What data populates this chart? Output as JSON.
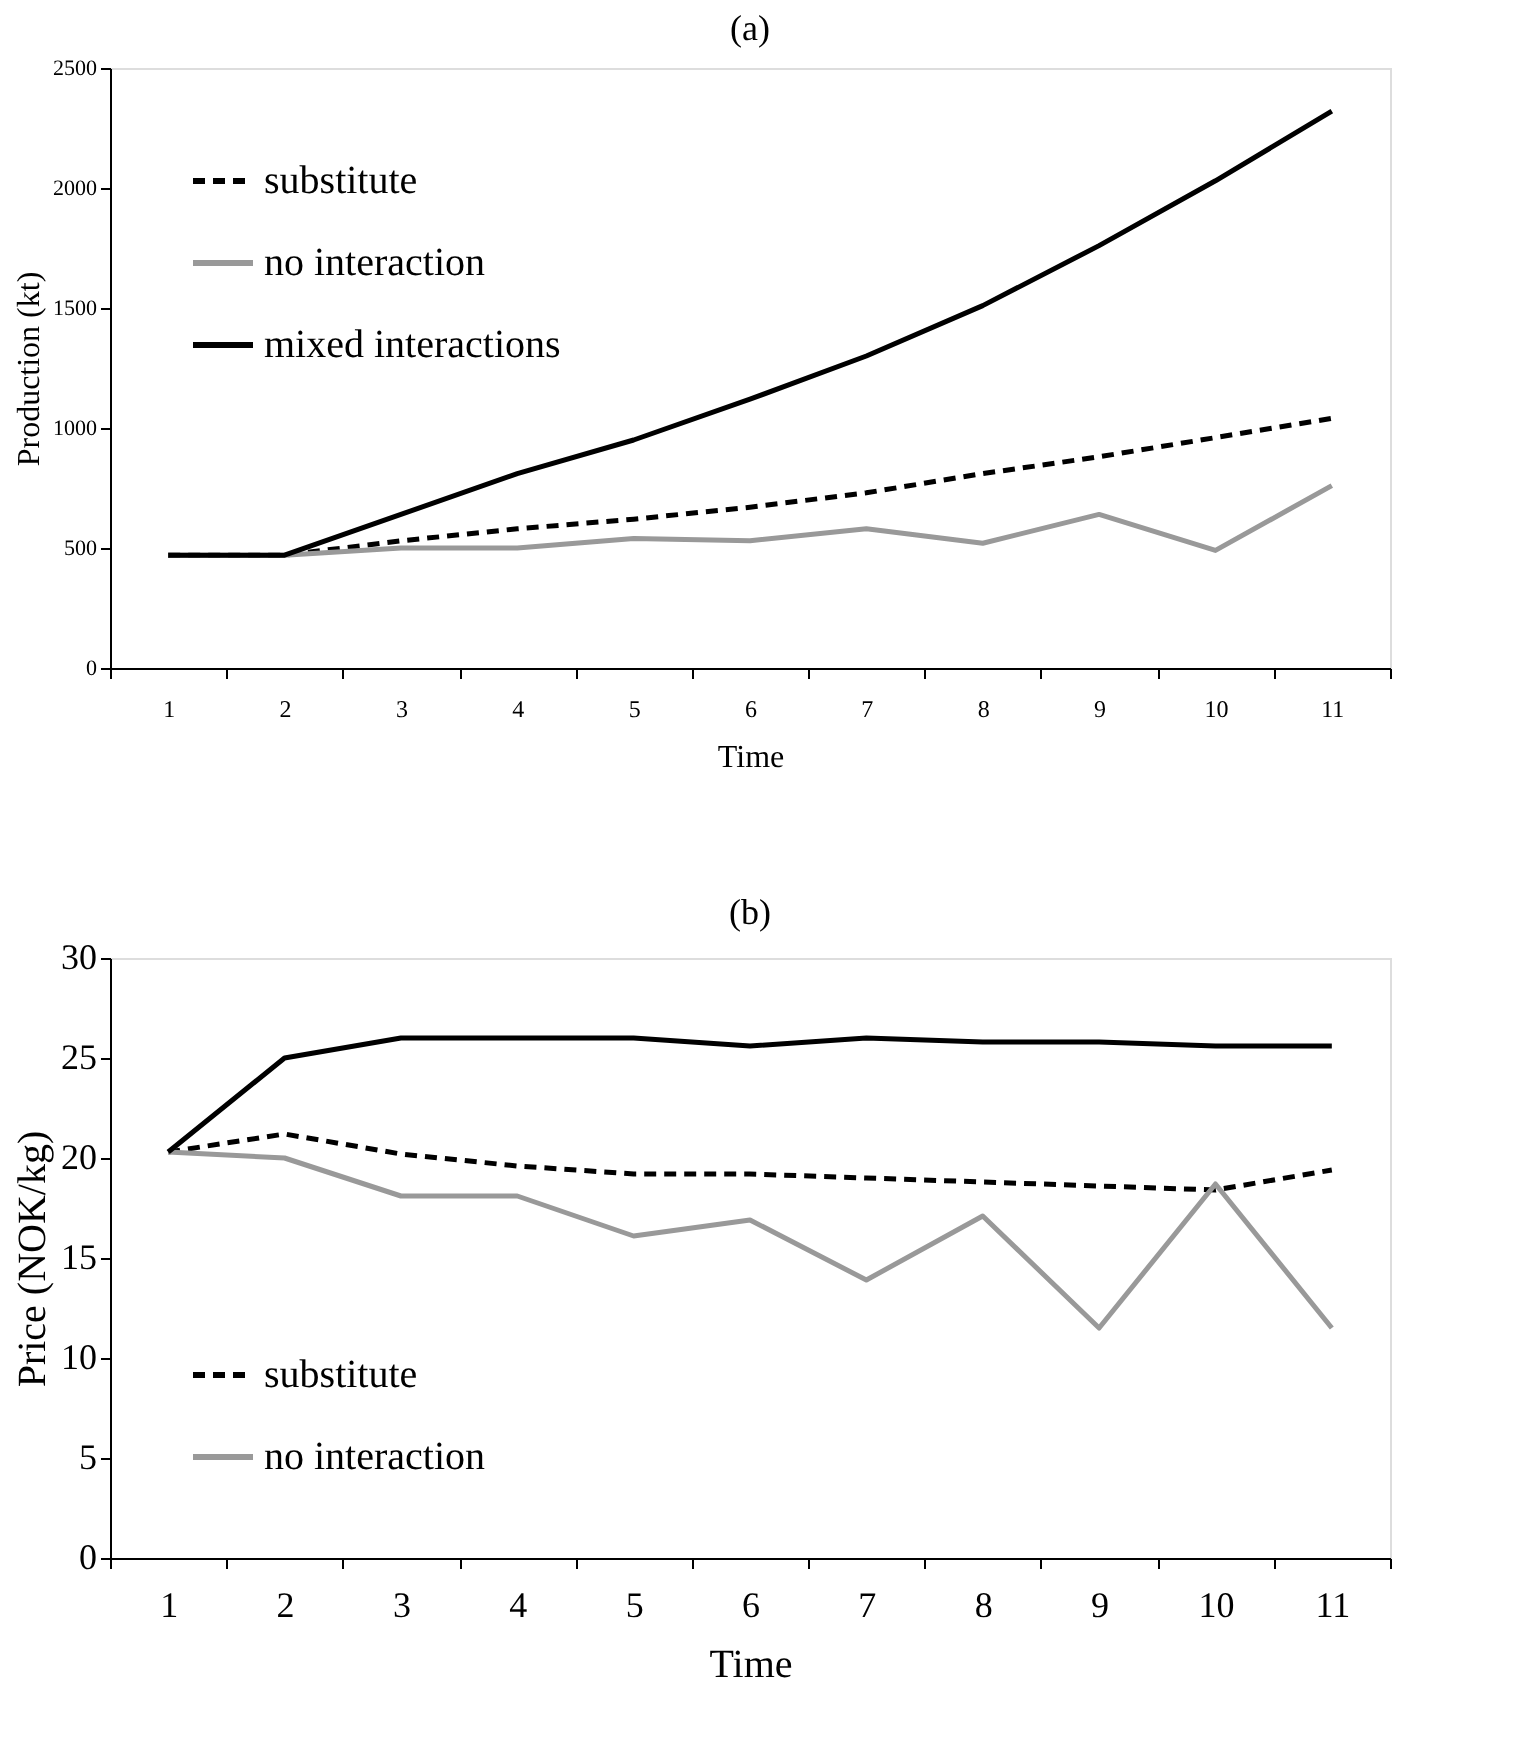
{
  "chart_data": [
    {
      "type": "line",
      "title": "(a)",
      "xlabel": "Time",
      "ylabel": "Production (kt)",
      "categories": [
        "1",
        "2",
        "3",
        "4",
        "5",
        "6",
        "7",
        "8",
        "9",
        "10",
        "11"
      ],
      "ylim": [
        0,
        2500
      ],
      "yticks": [
        0,
        500,
        1000,
        1500,
        2000,
        2500
      ],
      "grid": false,
      "legend": "top left",
      "marker": "none",
      "series": [
        {
          "name": "substitute",
          "color": "#000000",
          "line_style": "dashed",
          "values": [
            470,
            470,
            530,
            580,
            620,
            670,
            730,
            810,
            880,
            960,
            1040
          ]
        },
        {
          "name": "no interaction",
          "color": "#999999",
          "line_style": "solid",
          "values": [
            470,
            470,
            500,
            500,
            540,
            530,
            580,
            520,
            640,
            490,
            760
          ]
        },
        {
          "name": "mixed interactions",
          "color": "#000000",
          "line_style": "solid",
          "values": [
            470,
            470,
            640,
            810,
            950,
            1120,
            1300,
            1510,
            1760,
            2030,
            2320
          ]
        }
      ]
    },
    {
      "type": "line",
      "title": "(b)",
      "xlabel": "Time",
      "ylabel": "Price (NOK/kg)",
      "categories": [
        "1",
        "2",
        "3",
        "4",
        "5",
        "6",
        "7",
        "8",
        "9",
        "10",
        "11"
      ],
      "ylim": [
        0,
        30
      ],
      "yticks": [
        0,
        5,
        10,
        15,
        20,
        25,
        30
      ],
      "grid": false,
      "legend": "bottom left",
      "marker": "none",
      "series": [
        {
          "name": "substitute",
          "color": "#000000",
          "line_style": "dashed",
          "values": [
            20.3,
            21.2,
            20.2,
            19.6,
            19.2,
            19.2,
            19.0,
            18.8,
            18.6,
            18.4,
            19.4
          ]
        },
        {
          "name": "no interaction",
          "color": "#999999",
          "line_style": "solid",
          "values": [
            20.3,
            20.0,
            18.1,
            18.1,
            16.1,
            16.9,
            13.9,
            17.1,
            11.5,
            18.7,
            11.5
          ]
        },
        {
          "color": "#000000",
          "line_style": "solid",
          "values": [
            20.3,
            25.0,
            26.0,
            26.0,
            26.0,
            25.6,
            26.0,
            25.8,
            25.8,
            25.6,
            25.6
          ]
        }
      ]
    }
  ]
}
